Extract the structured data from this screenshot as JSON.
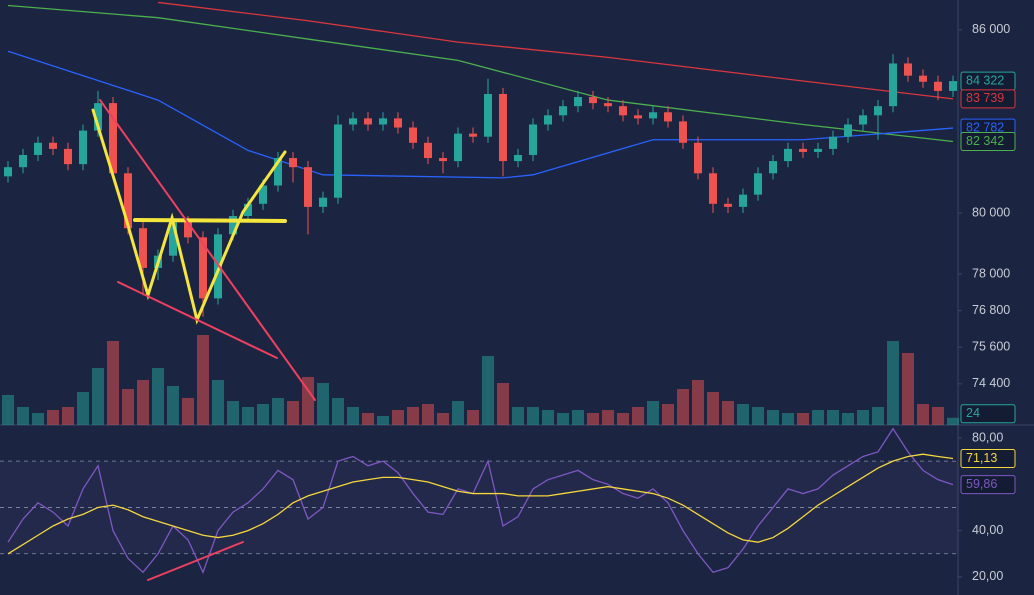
{
  "chart_data": {
    "type": "candlestick",
    "ylim": [
      73050,
      86980
    ],
    "yticks": [
      {
        "value": 86000,
        "label": "86 000"
      },
      {
        "value": 80000,
        "label": "80 000"
      },
      {
        "value": 78000,
        "label": "78 000"
      },
      {
        "value": 76800,
        "label": "76 800"
      },
      {
        "value": 75600,
        "label": "75 600"
      },
      {
        "value": 74400,
        "label": "74 400"
      }
    ],
    "up_color": "#26a69a",
    "down_color": "#ef5350",
    "open": [
      81200,
      81500,
      81900,
      82300,
      82100,
      81600,
      82700,
      83600,
      81300,
      79500,
      78200,
      78600,
      79700,
      79200,
      77200,
      79300,
      79900,
      80300,
      80900,
      81800,
      81500,
      80200,
      80500,
      82900,
      83100,
      82900,
      83100,
      82800,
      82300,
      81800,
      81700,
      82600,
      82500,
      83900,
      81700,
      81900,
      82900,
      83200,
      83500,
      83800,
      83600,
      83500,
      83200,
      83100,
      83300,
      83000,
      82300,
      81300,
      80300,
      80200,
      80600,
      81300,
      81700,
      82100,
      82000,
      82100,
      82500,
      82900,
      83200,
      83500,
      84900,
      84500,
      84300,
      84000
    ],
    "high": [
      81700,
      82100,
      82500,
      82500,
      82300,
      82900,
      84000,
      83800,
      81500,
      79700,
      78800,
      79900,
      79900,
      79400,
      79500,
      80100,
      80500,
      81100,
      82000,
      82000,
      81700,
      80700,
      83200,
      83300,
      83300,
      83300,
      83300,
      83000,
      82500,
      82000,
      82800,
      82800,
      84400,
      84100,
      82100,
      83100,
      83400,
      83700,
      84000,
      84000,
      83800,
      83700,
      83400,
      83500,
      83500,
      83200,
      82500,
      81500,
      80500,
      80800,
      81500,
      81900,
      82300,
      82300,
      82300,
      82700,
      83100,
      83400,
      83700,
      85200,
      85100,
      84700,
      84500,
      84500
    ],
    "low": [
      81000,
      81300,
      81700,
      81900,
      81400,
      81400,
      82500,
      81100,
      79300,
      77300,
      77800,
      78400,
      79000,
      76600,
      77000,
      79100,
      79700,
      80100,
      80700,
      81000,
      79300,
      80000,
      80300,
      82700,
      82700,
      82700,
      82600,
      82100,
      81600,
      81300,
      81500,
      82300,
      82300,
      81200,
      81500,
      81700,
      82700,
      83000,
      83300,
      83400,
      83300,
      83000,
      82900,
      82900,
      82800,
      82100,
      81100,
      80000,
      80000,
      80000,
      80400,
      81100,
      81500,
      81800,
      81800,
      81900,
      82300,
      82700,
      82400,
      83300,
      84300,
      84100,
      83700,
      83800
    ],
    "close": [
      81500,
      81900,
      82300,
      82100,
      81600,
      82700,
      83600,
      81300,
      79500,
      78200,
      78600,
      79700,
      79200,
      77200,
      79300,
      79900,
      80300,
      80900,
      81800,
      81500,
      80200,
      80500,
      82900,
      83100,
      82900,
      83100,
      82800,
      82300,
      81800,
      81700,
      82600,
      82500,
      83900,
      81700,
      81900,
      82900,
      83200,
      83500,
      83800,
      83600,
      83500,
      83200,
      83100,
      83300,
      83000,
      82300,
      81300,
      80300,
      80200,
      80600,
      81300,
      81700,
      82100,
      82000,
      82100,
      82500,
      82900,
      83200,
      83500,
      84900,
      84500,
      84300,
      84000,
      84322
    ],
    "moving_averages": [
      {
        "color": "#d9363e",
        "index": [
          10,
          20,
          30,
          40,
          50,
          63
        ],
        "values": [
          86900,
          86300,
          85600,
          85100,
          84500,
          83739
        ]
      },
      {
        "color": "#4caf50",
        "index": [
          0,
          10,
          20,
          30,
          40,
          53,
          63
        ],
        "values": [
          86800,
          86400,
          85700,
          85000,
          83700,
          82900,
          82342
        ]
      },
      {
        "color": "#2962ff",
        "index": [
          0,
          10,
          16,
          21,
          33,
          35,
          43,
          53,
          63
        ],
        "values": [
          85300,
          83700,
          82050,
          81250,
          81150,
          81250,
          82400,
          82400,
          82782
        ]
      }
    ],
    "price_labels": [
      {
        "value": 84322,
        "label": "84 322",
        "color": "#26a69a"
      },
      {
        "value": 83739,
        "label": "83 739",
        "color": "#d9363e"
      },
      {
        "value": 82782,
        "label": "82 782",
        "color": "#2962ff"
      },
      {
        "value": 82342,
        "label": "82 342",
        "color": "#4caf50"
      }
    ],
    "volume": [
      100,
      60,
      40,
      50,
      60,
      110,
      190,
      280,
      120,
      150,
      190,
      130,
      90,
      300,
      150,
      80,
      60,
      70,
      90,
      80,
      160,
      140,
      90,
      60,
      40,
      30,
      50,
      60,
      70,
      40,
      80,
      50,
      230,
      140,
      60,
      60,
      50,
      40,
      50,
      40,
      50,
      40,
      60,
      80,
      70,
      120,
      150,
      110,
      80,
      70,
      60,
      50,
      40,
      40,
      50,
      50,
      40,
      50,
      60,
      280,
      240,
      70,
      60,
      24
    ],
    "volume_ylim": [
      0,
      300
    ],
    "volume_label": {
      "value": 24,
      "label": "24",
      "color": "#26a69a"
    },
    "rsi": {
      "color": "#7e57c2",
      "ma_color": "#f5d63d",
      "values": [
        35,
        45,
        52,
        48,
        42,
        58,
        68,
        40,
        28,
        22,
        30,
        42,
        36,
        22,
        40,
        48,
        52,
        58,
        66,
        62,
        45,
        50,
        70,
        72,
        68,
        70,
        65,
        56,
        48,
        47,
        58,
        56,
        70,
        42,
        46,
        58,
        62,
        64,
        66,
        62,
        60,
        56,
        54,
        58,
        52,
        40,
        30,
        22,
        24,
        32,
        42,
        50,
        58,
        56,
        58,
        64,
        68,
        72,
        74,
        84,
        74,
        66,
        62,
        59.86
      ],
      "ma": [
        30,
        34,
        38,
        42,
        45,
        47,
        50,
        51,
        49,
        46,
        44,
        42,
        40,
        38,
        37,
        38,
        40,
        43,
        47,
        52,
        55,
        57,
        59,
        61,
        62,
        63,
        63,
        62,
        61,
        59,
        57,
        56,
        56,
        56,
        55,
        55,
        55,
        56,
        57,
        58,
        59,
        58,
        57,
        56,
        54,
        51,
        47,
        43,
        39,
        36,
        35,
        37,
        41,
        46,
        51,
        55,
        59,
        63,
        67,
        70,
        72,
        73,
        72,
        71.13
      ],
      "ylim": [
        12.2,
        85.6
      ],
      "yticks": [
        {
          "value": 80,
          "label": "80,00"
        },
        {
          "value": 40,
          "label": "40,00"
        },
        {
          "value": 20,
          "label": "20,00"
        }
      ],
      "levels": [
        70,
        50,
        30
      ],
      "labels": [
        {
          "value": 71.13,
          "label": "71,13",
          "color": "#f5d63d"
        },
        {
          "value": 59.86,
          "label": "59,86",
          "color": "#7e57c2"
        }
      ]
    }
  }
}
